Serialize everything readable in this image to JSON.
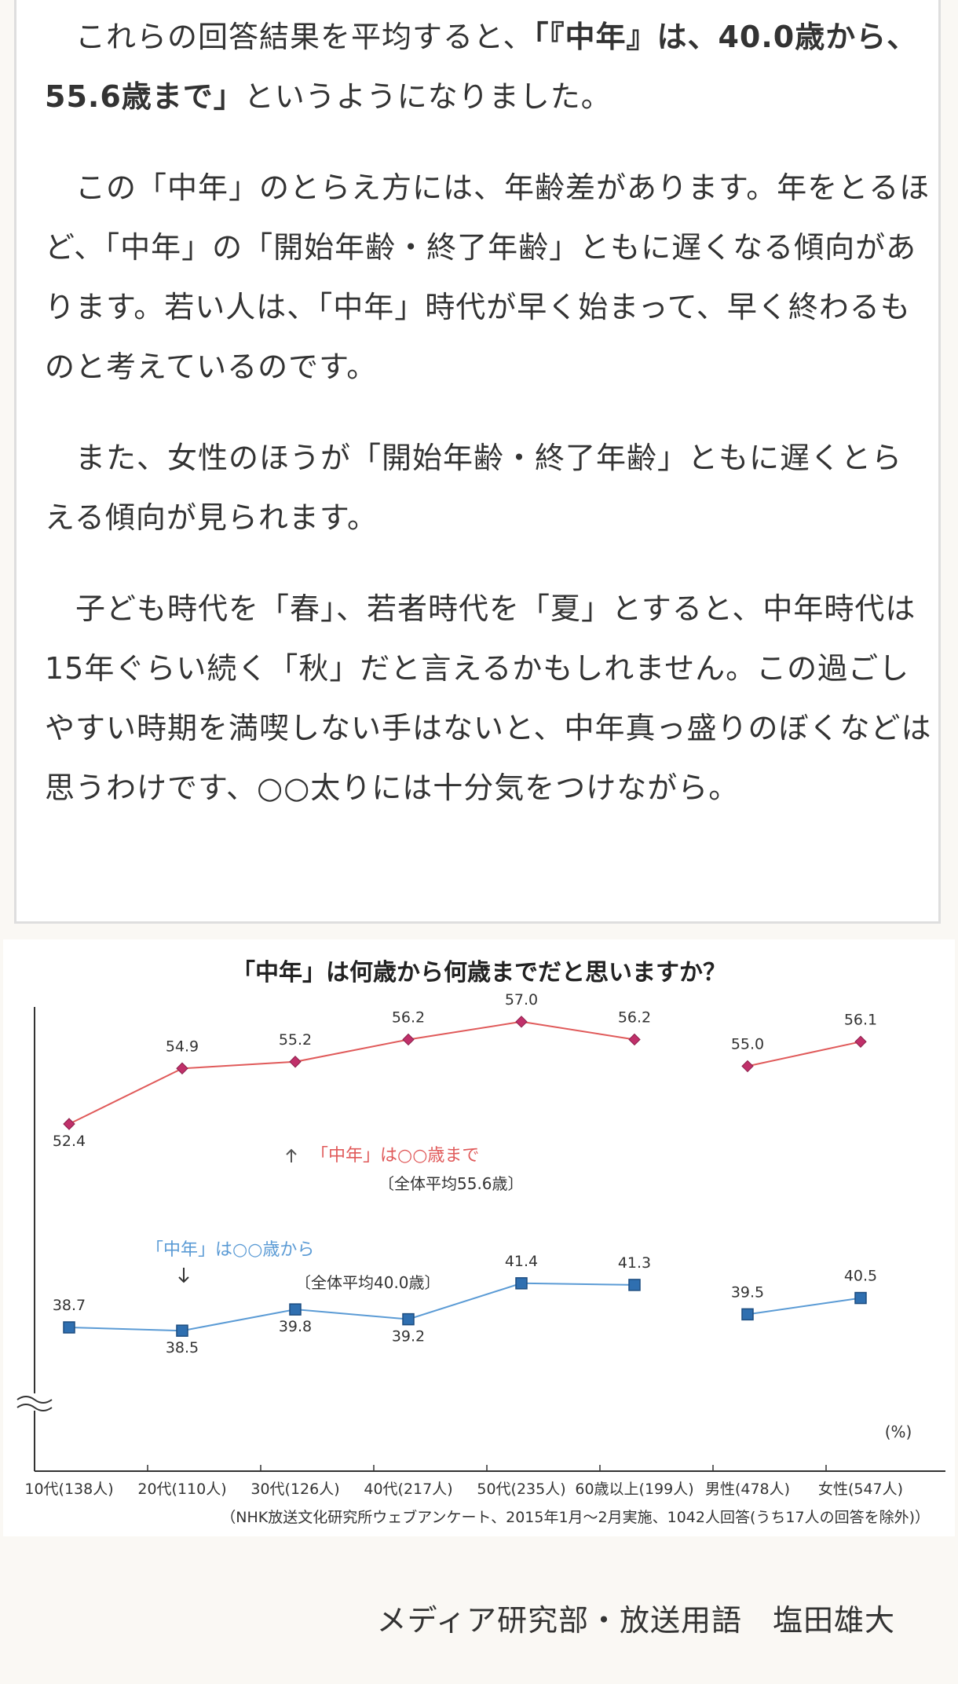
{
  "article": {
    "p1_text_a": "　これらの回答結果を平均すると、",
    "p1_bold": "「『中年』は、40.0歳から、55.6歳まで」",
    "p1_text_b": "というようになりました。",
    "p2": "　この「中年」のとらえ方には、年齢差があります。年をとるほど、「中年」の「開始年齢・終了年齢」ともに遅くなる傾向があります。若い人は、「中年」時代が早く始まって、早く終わるものと考えているのです。",
    "p3": "　また、女性のほうが「開始年齢・終了年齢」ともに遅くとらえる傾向が見られます。",
    "p4": "　子ども時代を「春」、若者時代を「夏」とすると、中年時代は15年ぐらい続く「秋」だと言えるかもしれません。この過ごしやすい時期を満喫しない手はないと、中年真っ盛りのぼくなどは思うわけです、○○太りには十分気をつけながら。"
  },
  "chart_data": {
    "type": "line",
    "title": "「中年」は何歳から何歳までだと思いますか？",
    "categories": [
      "10代(138人)",
      "20代(110人)",
      "30代(126人)",
      "40代(217人)",
      "50代(235人)",
      "60歳以上(199人)",
      "男性(478人)",
      "女性(547人)"
    ],
    "series": [
      {
        "name": "「中年」は○○歳まで",
        "color": "#e05a5a",
        "values": [
          52.4,
          54.9,
          55.2,
          56.2,
          57.0,
          56.2,
          55.0,
          56.1
        ],
        "average_label": "〔全体平均55.6歳〕",
        "marker": "diamond"
      },
      {
        "name": "「中年」は○○歳から",
        "color": "#5b9bd5",
        "values": [
          38.7,
          38.5,
          39.8,
          39.2,
          41.4,
          41.3,
          39.5,
          40.5
        ],
        "average_label": "〔全体平均40.0歳〕",
        "marker": "square"
      }
    ],
    "segments": [
      [
        0,
        5
      ],
      [
        6,
        7
      ]
    ],
    "unit_label": "(%)",
    "axis_break": true,
    "y_axis_labels": false,
    "grid": false,
    "source": "（NHK放送文化研究所ウェブアンケート、2015年1月～2月実施、1042人回答(うち17人の回答を除外)）"
  },
  "footer": {
    "author": "メディア研究部・放送用語　塩田雄大"
  }
}
